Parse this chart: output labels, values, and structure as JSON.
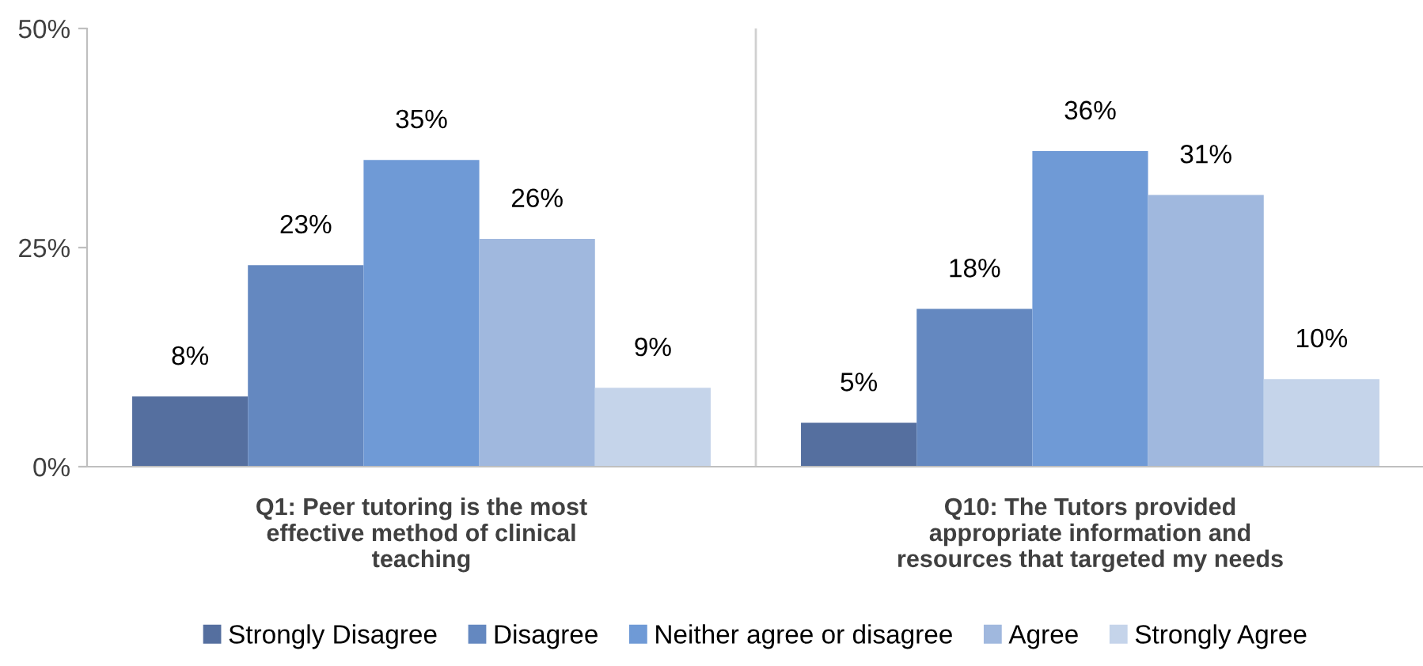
{
  "chart_data": {
    "type": "bar",
    "categories": [
      "Q1: Peer tutoring is the most\neffective method of clinical\nteaching",
      "Q10: The Tutors provided\nappropriate information and\nresources that targeted my needs"
    ],
    "series": [
      {
        "name": "Strongly Disagree",
        "color": "#556f9f",
        "values": [
          8,
          5
        ],
        "value_labels": [
          "8%",
          "5%"
        ]
      },
      {
        "name": "Disagree",
        "color": "#6488c0",
        "values": [
          23,
          18
        ],
        "value_labels": [
          "23%",
          "18%"
        ]
      },
      {
        "name": "Neither agree or disagree",
        "color": "#6f9ad6",
        "values": [
          35,
          36
        ],
        "value_labels": [
          "35%",
          "36%"
        ]
      },
      {
        "name": "Agree",
        "color": "#a0b8de",
        "values": [
          26,
          31
        ],
        "value_labels": [
          "26%",
          "31%"
        ]
      },
      {
        "name": "Strongly Agree",
        "color": "#c5d4ea",
        "values": [
          9,
          10
        ],
        "value_labels": [
          "9%",
          "10%"
        ]
      }
    ],
    "ylim": [
      0,
      50
    ],
    "yticks": [
      {
        "value": 0,
        "label": "0%"
      },
      {
        "value": 25,
        "label": "25%"
      },
      {
        "value": 50,
        "label": "50%"
      }
    ],
    "grid": "x",
    "legend": "bottom"
  }
}
